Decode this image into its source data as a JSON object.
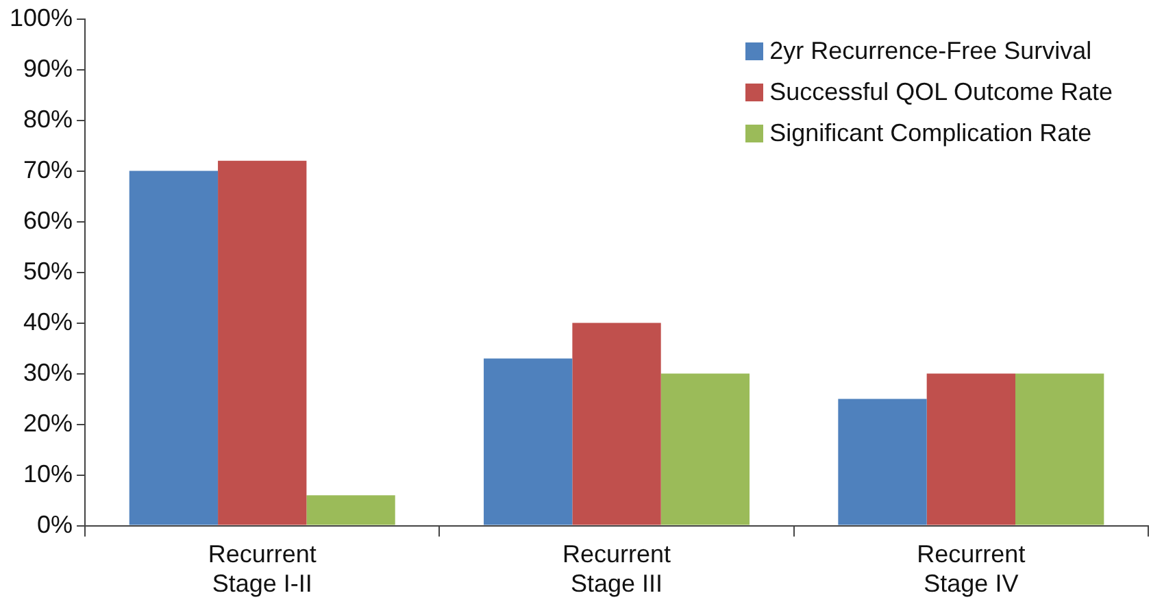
{
  "chart_data": {
    "type": "bar",
    "categories": [
      "Recurrent Stage I-II",
      "Recurrent Stage III",
      "Recurrent Stage IV"
    ],
    "series": [
      {
        "name": "2yr Recurrence-Free Survival",
        "color": "#4f81bd",
        "values": [
          70,
          33,
          25
        ]
      },
      {
        "name": "Successful QOL Outcome Rate",
        "color": "#c0504d",
        "values": [
          72,
          40,
          30
        ]
      },
      {
        "name": "Significant Complication Rate",
        "color": "#9bbb59",
        "values": [
          6,
          30,
          30
        ]
      }
    ],
    "ylim": [
      0,
      100
    ],
    "yticks": [
      {
        "value": 0,
        "label": "0%"
      },
      {
        "value": 10,
        "label": "10%"
      },
      {
        "value": 20,
        "label": "20%"
      },
      {
        "value": 30,
        "label": "30%"
      },
      {
        "value": 40,
        "label": "40%"
      },
      {
        "value": 50,
        "label": "50%"
      },
      {
        "value": 60,
        "label": "60%"
      },
      {
        "value": 70,
        "label": "70%"
      },
      {
        "value": 80,
        "label": "80%"
      },
      {
        "value": 90,
        "label": "90%"
      },
      {
        "value": 100,
        "label": "100%"
      }
    ],
    "grid": false,
    "legend": "top right"
  }
}
